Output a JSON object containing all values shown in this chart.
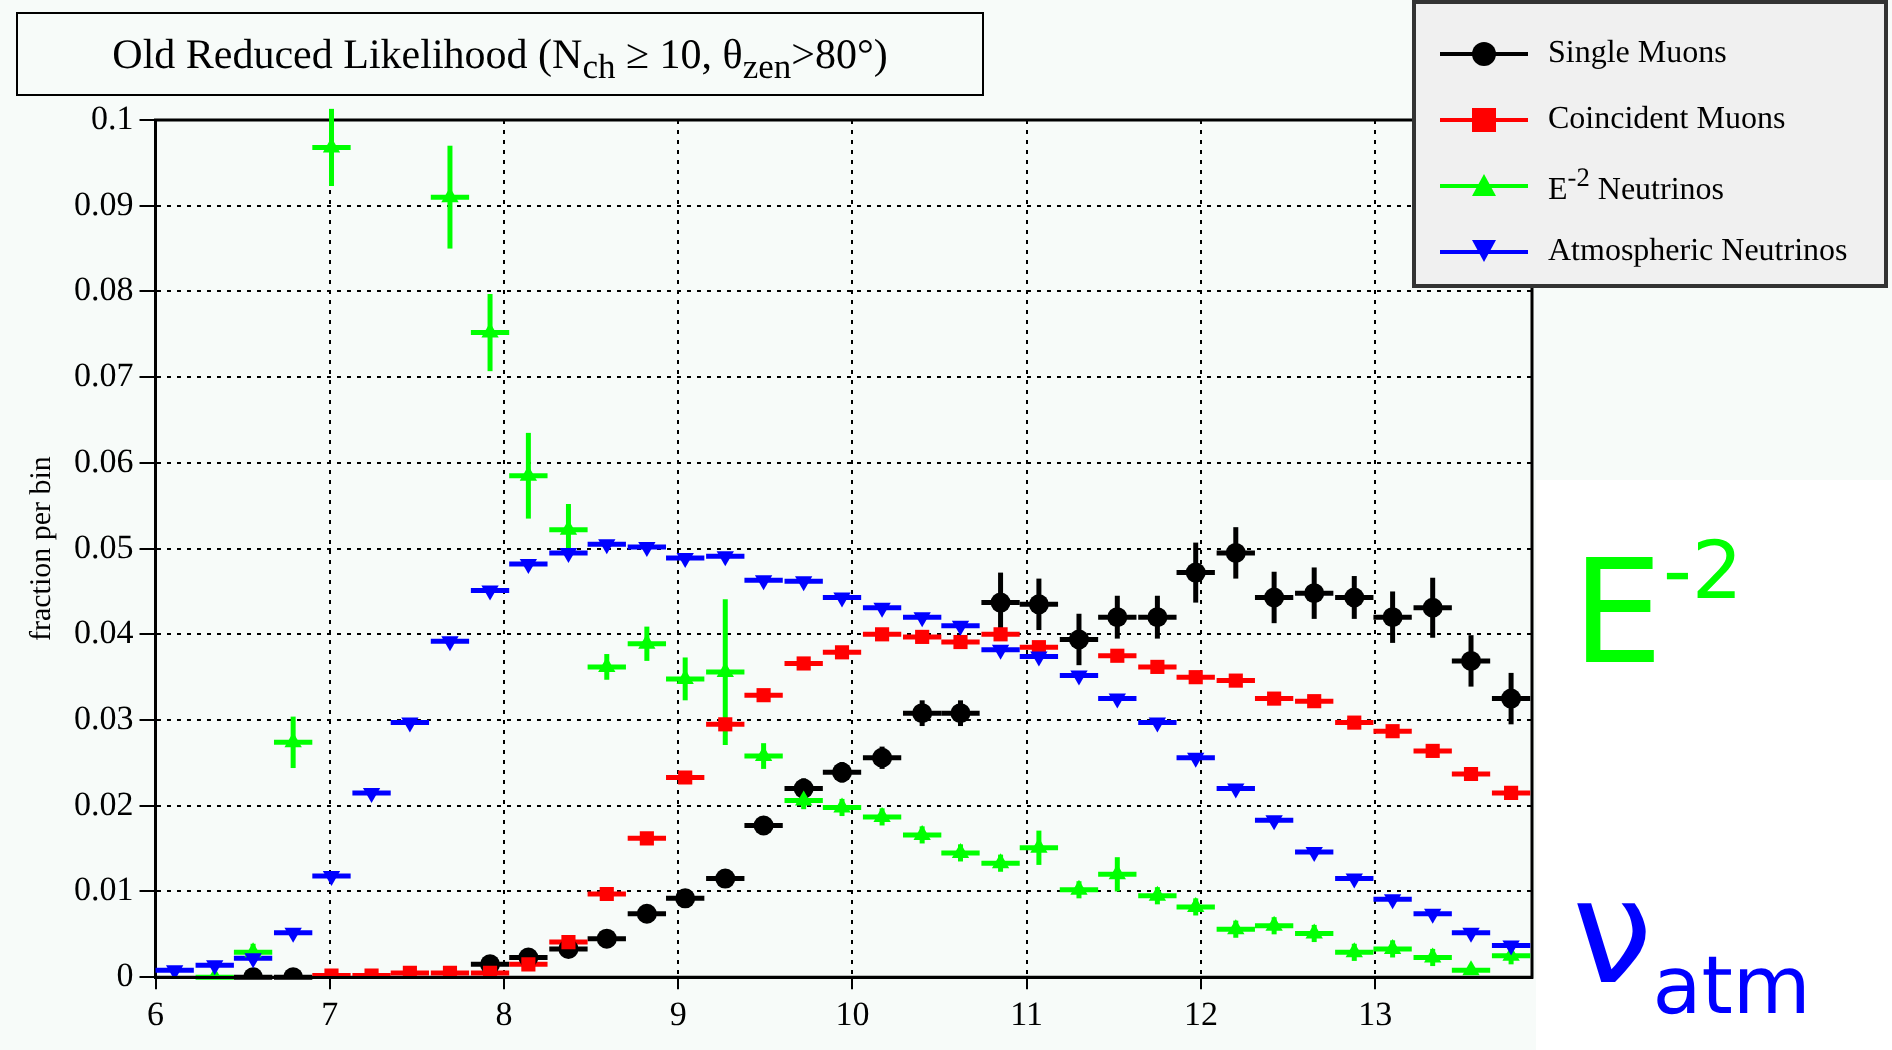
{
  "chart_data": {
    "type": "scatter",
    "title": "Old Reduced Likelihood (N$_{ch}$ ≥ 10, θ$_{zen}$>80°)",
    "ylabel": "fraction per bin",
    "x": [
      6.11,
      6.34,
      6.56,
      6.79,
      7.01,
      7.24,
      7.46,
      7.69,
      7.92,
      8.14,
      8.37,
      8.59,
      8.82,
      9.04,
      9.27,
      9.49,
      9.72,
      9.94,
      10.17,
      10.4,
      10.62,
      10.85,
      11.07,
      11.3,
      11.52,
      11.75,
      11.97,
      12.2,
      12.42,
      12.65,
      12.88,
      13.1,
      13.33,
      13.55,
      13.78
    ],
    "xlim": [
      6,
      13.9
    ],
    "xticks": [
      6,
      7,
      8,
      9,
      10,
      11,
      12,
      13
    ],
    "ylim": [
      0,
      0.1
    ],
    "yticks": [
      0,
      0.01,
      0.02,
      0.03,
      0.04,
      0.05,
      0.06,
      0.07,
      0.08,
      0.09,
      0.1
    ],
    "grid": true,
    "legend": "top right",
    "series": [
      {
        "name": "Single Muons",
        "color": "#000000",
        "marker": "circle",
        "values": [
          null,
          null,
          0,
          0,
          null,
          null,
          null,
          null,
          0.0015,
          0.0023,
          0.0033,
          0.0045,
          0.0074,
          0.0092,
          0.0115,
          0.0177,
          0.022,
          0.0239,
          0.0256,
          0.0308,
          0.0308,
          0.0437,
          0.0435,
          0.0394,
          0.042,
          0.042,
          0.0472,
          0.0495,
          0.0443,
          0.0448,
          0.0443,
          0.042,
          0.0431,
          0.0369,
          0.0325
        ],
        "errors": [
          null,
          null,
          null,
          null,
          null,
          null,
          null,
          null,
          0.0005,
          0.0005,
          0.0006,
          0.0006,
          0.0007,
          0.0007,
          0.0008,
          0.001,
          0.0012,
          0.0012,
          0.0013,
          0.0015,
          0.0015,
          0.0035,
          0.003,
          0.003,
          0.0025,
          0.0025,
          0.0035,
          0.003,
          0.003,
          0.003,
          0.0025,
          0.003,
          0.0035,
          0.003,
          0.003
        ],
        "xerrors": [
          null,
          null,
          0.11,
          0.11,
          null,
          null,
          null,
          null,
          0.11,
          0.11,
          0.11,
          0.11,
          0.11,
          0.11,
          0.11,
          0.11,
          0.11,
          0.11,
          0.11,
          0.11,
          0.11,
          0.11,
          0.11,
          0.11,
          0.11,
          0.11,
          0.11,
          0.11,
          0.11,
          0.11,
          0.11,
          0.11,
          0.11,
          0.11,
          0.11
        ]
      },
      {
        "name": "Coincident Muons",
        "color": "#ff0000",
        "marker": "square",
        "values": [
          null,
          null,
          null,
          null,
          0.0002,
          0.0002,
          0.0005,
          0.0005,
          0.0005,
          0.0015,
          0.0041,
          0.0097,
          0.0162,
          0.0233,
          0.0295,
          0.0329,
          0.0366,
          0.0379,
          0.04,
          0.0397,
          0.0391,
          0.04,
          0.0385,
          null,
          0.0375,
          0.0362,
          0.035,
          0.0346,
          0.0325,
          0.0322,
          0.0297,
          0.0287,
          0.0264,
          0.0237,
          0.0215
        ],
        "xerrors": [
          null,
          null,
          null,
          null,
          0.11,
          0.11,
          0.11,
          0.11,
          0.11,
          0.11,
          0.11,
          0.11,
          0.11,
          0.11,
          0.11,
          0.11,
          0.11,
          0.11,
          0.11,
          0.11,
          0.11,
          0.11,
          0.11,
          null,
          0.11,
          0.11,
          0.11,
          0.11,
          0.11,
          0.11,
          0.11,
          0.11,
          0.11,
          0.11,
          0.11
        ]
      },
      {
        "name": "E$^{-2}$ Neutrinos",
        "color": "#00ff00",
        "marker": "triangle",
        "values": [
          null,
          0,
          0.0029,
          0.0274,
          0.0968,
          null,
          null,
          0.091,
          0.0752,
          0.0585,
          0.0522,
          0.0362,
          0.0389,
          0.0348,
          0.0356,
          0.0258,
          0.0206,
          0.0198,
          0.0187,
          0.0166,
          0.0145,
          0.0133,
          0.0151,
          0.0102,
          0.012,
          0.0095,
          0.0082,
          0.0056,
          0.006,
          0.0051,
          0.0029,
          0.0033,
          0.0023,
          0.0008,
          0.0025
        ],
        "errors": [
          null,
          null,
          0.001,
          0.003,
          0.0045,
          null,
          null,
          0.006,
          0.0045,
          0.005,
          0.003,
          0.0015,
          0.002,
          0.0025,
          0.0085,
          0.0015,
          0.001,
          0.001,
          0.001,
          0.001,
          0.001,
          0.001,
          0.002,
          0.001,
          0.002,
          0.001,
          0.001,
          0.001,
          0.001,
          0.001,
          0.001,
          0.001,
          0.001,
          null,
          0.001
        ],
        "xerrors": [
          null,
          0.11,
          0.11,
          0.11,
          0.11,
          null,
          null,
          0.11,
          0.11,
          0.11,
          0.11,
          0.11,
          0.11,
          0.11,
          0.11,
          0.11,
          0.11,
          0.11,
          0.11,
          0.11,
          0.11,
          0.11,
          0.11,
          0.11,
          0.11,
          0.11,
          0.11,
          0.11,
          0.11,
          0.11,
          0.11,
          0.11,
          0.11,
          0.11,
          0.11
        ]
      },
      {
        "name": "Atmospheric Neutrinos",
        "color": "#0000ff",
        "marker": "triangle_down",
        "values": [
          0.0008,
          0.0014,
          0.0022,
          0.0052,
          0.0118,
          0.0215,
          0.0297,
          0.0392,
          0.0451,
          0.0482,
          0.0495,
          0.0505,
          0.0502,
          0.0489,
          0.0491,
          0.0463,
          0.0462,
          0.0443,
          0.0431,
          0.042,
          0.041,
          0.0382,
          0.0374,
          0.0352,
          0.0325,
          0.0297,
          0.0256,
          0.022,
          0.0183,
          0.0146,
          0.0115,
          0.0091,
          0.0074,
          0.0052,
          0.0037
        ],
        "xerrors": [
          0.11,
          0.11,
          0.11,
          0.11,
          0.11,
          0.11,
          0.11,
          0.11,
          0.11,
          0.11,
          0.11,
          0.11,
          0.11,
          0.11,
          0.11,
          0.11,
          0.11,
          0.11,
          0.11,
          0.11,
          0.11,
          0.11,
          0.11,
          0.11,
          0.11,
          0.11,
          0.11,
          0.11,
          0.11,
          0.11,
          0.11,
          0.11,
          0.11,
          0.11,
          0.11
        ]
      }
    ],
    "annotations": [
      "E$^{-2}$",
      "ν$_{atm}$"
    ]
  }
}
